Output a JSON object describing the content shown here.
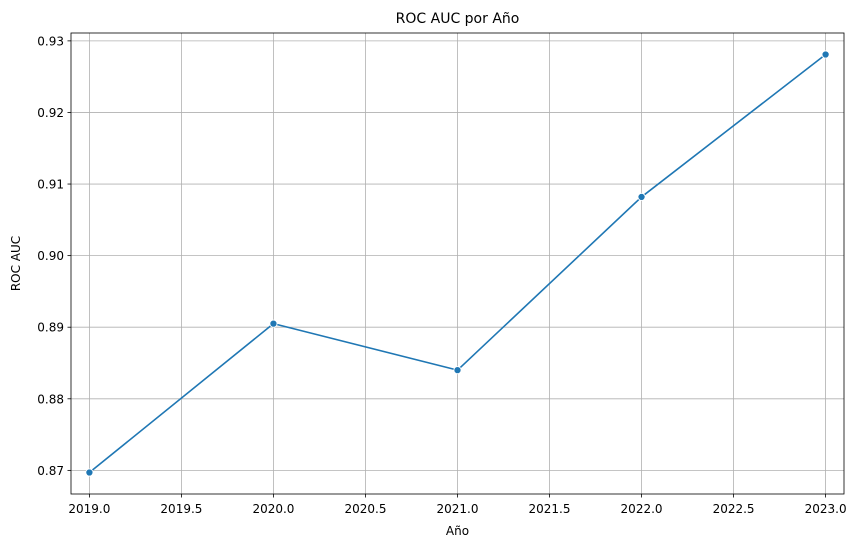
{
  "chart_data": {
    "type": "line",
    "title": "ROC AUC por Año",
    "xlabel": "Año",
    "ylabel": "ROC AUC",
    "x": [
      2019,
      2020,
      2021,
      2022,
      2023
    ],
    "series": [
      {
        "values": [
          0.8697,
          0.8905,
          0.884,
          0.9082,
          0.9281
        ],
        "color": "#1f77b4",
        "marker": "circle"
      }
    ],
    "xlim": [
      2018.9,
      2023.1
    ],
    "ylim": [
      0.8667,
      0.9311
    ],
    "xticks": [
      {
        "value": 2019.0,
        "label": "2019.0"
      },
      {
        "value": 2019.5,
        "label": "2019.5"
      },
      {
        "value": 2020.0,
        "label": "2020.0"
      },
      {
        "value": 2020.5,
        "label": "2020.5"
      },
      {
        "value": 2021.0,
        "label": "2021.0"
      },
      {
        "value": 2021.5,
        "label": "2021.5"
      },
      {
        "value": 2022.0,
        "label": "2022.0"
      },
      {
        "value": 2022.5,
        "label": "2022.5"
      },
      {
        "value": 2023.0,
        "label": "2023.0"
      }
    ],
    "yticks": [
      {
        "value": 0.87,
        "label": "0.87"
      },
      {
        "value": 0.88,
        "label": "0.88"
      },
      {
        "value": 0.89,
        "label": "0.89"
      },
      {
        "value": 0.9,
        "label": "0.90"
      },
      {
        "value": 0.91,
        "label": "0.91"
      },
      {
        "value": 0.92,
        "label": "0.92"
      },
      {
        "value": 0.93,
        "label": "0.93"
      }
    ],
    "grid": true,
    "grid_color": "#b0b0b0"
  }
}
